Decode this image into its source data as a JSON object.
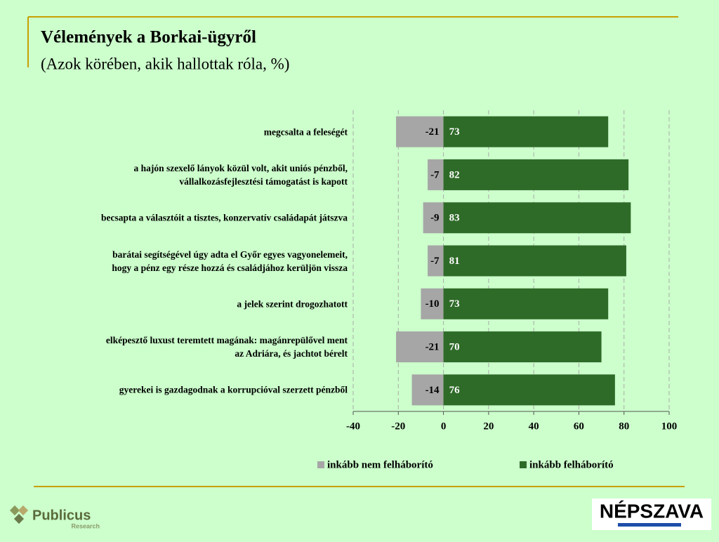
{
  "chart_data": {
    "type": "bar",
    "orientation": "horizontal",
    "stacked": true,
    "title": "Vélemények a Borkai-ügyről",
    "subtitle": "(Azok körében, akik hallottak róla, %)",
    "categories": [
      "megcsalta a feleségét",
      "a hajón szexelő lányok közül volt, akit uniós pénzből,\nvállalkozásfejlesztési támogatást is kapott",
      "becsapta a választóit a tisztes, konzervatív családapát játszva",
      "barátai segítségével úgy adta el Győr egyes vagyonelemeit,\nhogy a pénz egy része hozzá és családjához kerüljön vissza",
      "a jelek szerint drogozhatott",
      "elképesztő luxust teremtett magának: magánrepülővel ment\naz Adriára, és jachtot bérelt",
      "gyerekei is gazdagodnak a korrupcióval szerzett pénzből"
    ],
    "series": [
      {
        "name": "inkább nem felháborító",
        "color": "#a6a6a6",
        "values": [
          -21,
          -7,
          -9,
          -7,
          -10,
          -21,
          -14
        ]
      },
      {
        "name": "inkább felháborító",
        "color": "#2e6b28",
        "values": [
          73,
          82,
          83,
          81,
          73,
          70,
          76
        ]
      }
    ],
    "xlim": [
      -40,
      100
    ],
    "xticks": [
      -40,
      -20,
      0,
      20,
      40,
      60,
      80,
      100
    ],
    "grid": true,
    "legend": "bottom"
  },
  "logos": {
    "left": "Publicus",
    "left_sub": "Research",
    "right": "NÉPSZAVA"
  }
}
